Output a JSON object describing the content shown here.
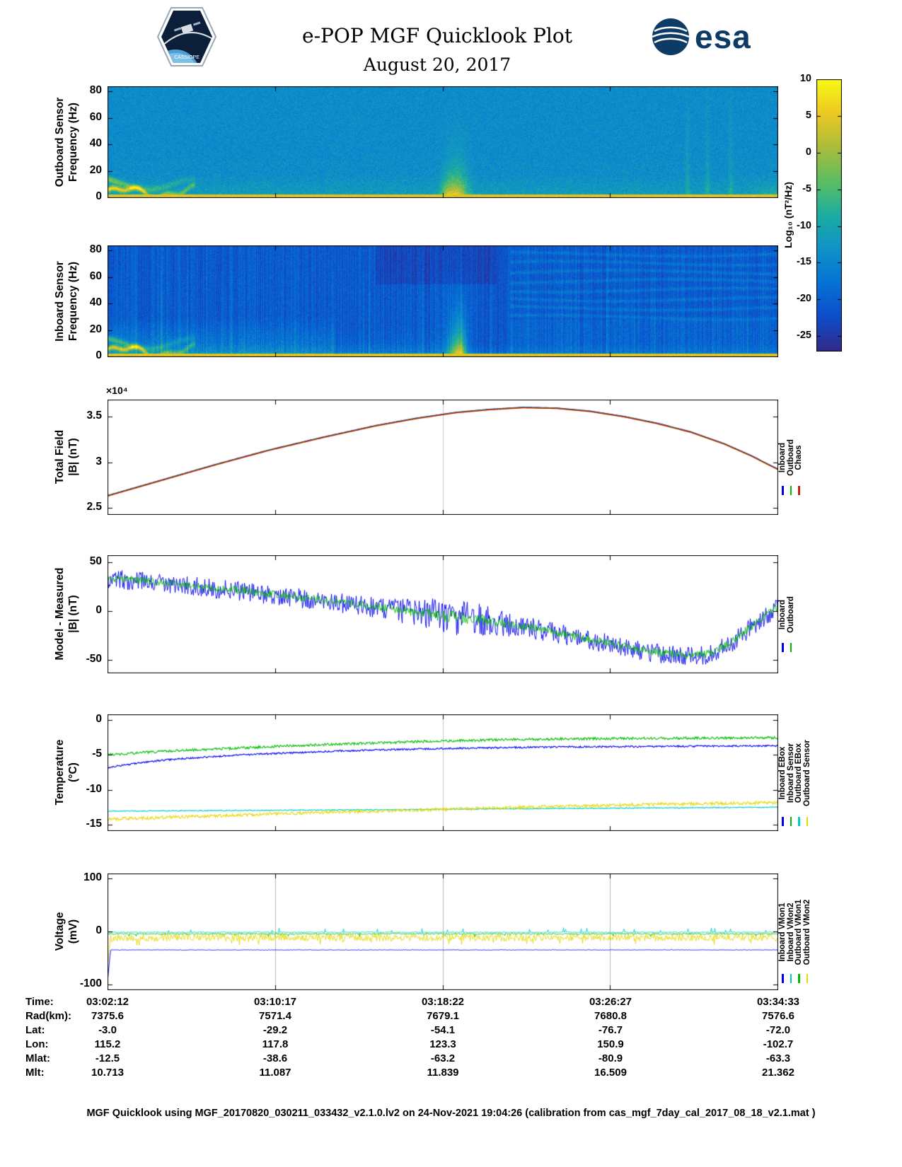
{
  "header": {
    "title": "e-POP MGF Quicklook Plot",
    "date": "August 20, 2017",
    "esa_text": "esa",
    "mission_text": "CASSIOPE"
  },
  "colorbar": {
    "label": "Log₁₀ (nT²/Hz)",
    "ticks": [
      10,
      5,
      0,
      -5,
      -10,
      -15,
      -20,
      -25
    ],
    "range": [
      -27,
      10
    ]
  },
  "chart_data": [
    {
      "type": "heatmap",
      "name": "outboard-spectrogram",
      "ylabel_lines": [
        "Outboard Sensor",
        "Frequency (Hz)"
      ],
      "ylim": [
        0,
        84
      ],
      "yticks": [
        0,
        20,
        40,
        60,
        80
      ],
      "x_tick_times": [
        "03:02:12",
        "03:10:17",
        "03:18:22",
        "03:26:27",
        "03:34:33"
      ],
      "colorbar_units": "Log₁₀ (nT²/Hz)",
      "background_db": -14,
      "features": {
        "bottom_band_db": 4.5,
        "burst_t": 0.52,
        "burst_peak_db": 6,
        "wavy_low_freq_lines_until_t": 0.13,
        "streak_ts": [
          0.865,
          0.895,
          0.93
        ]
      }
    },
    {
      "type": "heatmap",
      "name": "inboard-spectrogram",
      "ylabel_lines": [
        "Inboard Sensor",
        "Frequency (Hz)"
      ],
      "ylim": [
        0,
        84
      ],
      "yticks": [
        0,
        20,
        40,
        60,
        80
      ],
      "x_tick_times": [
        "03:02:12",
        "03:10:17",
        "03:18:22",
        "03:26:27",
        "03:34:33"
      ],
      "background_db": -20.5,
      "features": {
        "bottom_band_db": 4.5,
        "burst_t": 0.52,
        "green_patch_t_max": 0.34,
        "green_patch_f_max": 30,
        "harmonic_lines_t_min": 0.6,
        "harmonic_f_start": 30,
        "harmonic_f_step": 6.8
      }
    },
    {
      "type": "line",
      "name": "total-field",
      "ylabel_lines": [
        "Total Field",
        "|B| (nT)"
      ],
      "y_exponent_label": "×10⁴",
      "units_scale": "1e4 nT",
      "ylim": [
        2.43,
        3.69
      ],
      "yticks": [
        2.5,
        3,
        3.5
      ],
      "grid_t": [
        0.5
      ],
      "x_tick_times": [
        "03:02:12",
        "03:10:17",
        "03:18:22",
        "03:26:27",
        "03:34:33"
      ],
      "legend": [
        {
          "label": "Inboard",
          "color": "#0000ee"
        },
        {
          "label": "Outboard",
          "color": "#00bb00"
        },
        {
          "label": "Chaos",
          "color": "#cc2200"
        }
      ],
      "draw_offsets": [
        0.006,
        0.003,
        0
      ],
      "points": [
        [
          0,
          2.63
        ],
        [
          0.08,
          2.8
        ],
        [
          0.16,
          2.97
        ],
        [
          0.24,
          3.13
        ],
        [
          0.32,
          3.27
        ],
        [
          0.4,
          3.4
        ],
        [
          0.46,
          3.48
        ],
        [
          0.52,
          3.545
        ],
        [
          0.57,
          3.578
        ],
        [
          0.62,
          3.6
        ],
        [
          0.67,
          3.592
        ],
        [
          0.72,
          3.558
        ],
        [
          0.77,
          3.5
        ],
        [
          0.82,
          3.425
        ],
        [
          0.87,
          3.33
        ],
        [
          0.92,
          3.2
        ],
        [
          0.96,
          3.07
        ],
        [
          1,
          2.92
        ]
      ]
    },
    {
      "type": "line",
      "name": "model-minus-measured",
      "ylabel_lines": [
        "Model - Measured",
        "|B| (nT)"
      ],
      "ylim": [
        -63,
        57
      ],
      "yticks": [
        -50,
        0,
        50
      ],
      "grid_t": [
        0.5
      ],
      "x_tick_times": [
        "03:02:12",
        "03:10:17",
        "03:18:22",
        "03:26:27",
        "03:34:33"
      ],
      "legend": [
        {
          "label": "Inboard",
          "color": "#0000ee"
        },
        {
          "label": "Outboard",
          "color": "#00bb00"
        }
      ],
      "mean": [
        [
          0,
          33
        ],
        [
          0.05,
          30
        ],
        [
          0.1,
          27
        ],
        [
          0.15,
          23.5
        ],
        [
          0.2,
          20
        ],
        [
          0.25,
          16
        ],
        [
          0.3,
          12
        ],
        [
          0.35,
          8
        ],
        [
          0.4,
          3.5
        ],
        [
          0.45,
          -1
        ],
        [
          0.48,
          -4
        ],
        [
          0.5,
          -6
        ],
        [
          0.53,
          -8
        ],
        [
          0.56,
          -10
        ],
        [
          0.6,
          -14
        ],
        [
          0.65,
          -20
        ],
        [
          0.7,
          -27
        ],
        [
          0.75,
          -34
        ],
        [
          0.8,
          -41
        ],
        [
          0.84,
          -45
        ],
        [
          0.87,
          -47
        ],
        [
          0.9,
          -44
        ],
        [
          0.93,
          -33
        ],
        [
          0.96,
          -17
        ],
        [
          1,
          4
        ]
      ],
      "series": [
        {
          "name": "Inboard",
          "color": "#0000ee",
          "offset": 0,
          "noise_base": 10,
          "noise_bump": 9
        },
        {
          "name": "Outboard",
          "color": "#00bb00",
          "offset": 1,
          "noise_base": 4,
          "noise_bump": 2
        }
      ]
    },
    {
      "type": "line",
      "name": "temperature",
      "ylabel_lines": [
        "Temperature",
        "(°C)"
      ],
      "ylim": [
        -15.8,
        0.8
      ],
      "yticks": [
        -15,
        -10,
        -5,
        0
      ],
      "grid_t": [
        0.5
      ],
      "x_tick_times": [
        "03:02:12",
        "03:10:17",
        "03:18:22",
        "03:26:27",
        "03:34:33"
      ],
      "legend": [
        {
          "label": "Inboard EBox",
          "color": "#0000ee"
        },
        {
          "label": "Inboard Sensor",
          "color": "#00bb00"
        },
        {
          "label": "Outboard EBox",
          "color": "#00cccc"
        },
        {
          "label": "Outboard Sensor",
          "color": "#e6d800"
        }
      ],
      "series": [
        {
          "name": "Inboard EBox",
          "color": "#0000ee",
          "noise": 0.12,
          "points": [
            [
              0,
              -6.8
            ],
            [
              0.05,
              -6.1
            ],
            [
              0.1,
              -5.6
            ],
            [
              0.2,
              -5.0
            ],
            [
              0.3,
              -4.6
            ],
            [
              0.4,
              -4.3
            ],
            [
              0.5,
              -4.1
            ],
            [
              0.6,
              -3.95
            ],
            [
              0.7,
              -3.85
            ],
            [
              0.8,
              -3.8
            ],
            [
              0.9,
              -3.75
            ],
            [
              1,
              -3.7
            ]
          ]
        },
        {
          "name": "Inboard Sensor",
          "color": "#00bb00",
          "noise": 0.18,
          "points": [
            [
              0,
              -5.0
            ],
            [
              0.05,
              -4.7
            ],
            [
              0.1,
              -4.4
            ],
            [
              0.2,
              -4.0
            ],
            [
              0.3,
              -3.6
            ],
            [
              0.4,
              -3.3
            ],
            [
              0.5,
              -3.0
            ],
            [
              0.6,
              -2.8
            ],
            [
              0.7,
              -2.7
            ],
            [
              0.8,
              -2.62
            ],
            [
              0.9,
              -2.58
            ],
            [
              1,
              -2.55
            ]
          ]
        },
        {
          "name": "Outboard EBox",
          "color": "#00cccc",
          "noise": 0.07,
          "points": [
            [
              0,
              -13.05
            ],
            [
              0.2,
              -12.95
            ],
            [
              0.4,
              -12.85
            ],
            [
              0.6,
              -12.72
            ],
            [
              0.8,
              -12.6
            ],
            [
              1,
              -12.5
            ]
          ]
        },
        {
          "name": "Outboard Sensor",
          "color": "#e6d800",
          "noise": 0.22,
          "points": [
            [
              0,
              -14.2
            ],
            [
              0.1,
              -13.9
            ],
            [
              0.2,
              -13.6
            ],
            [
              0.3,
              -13.3
            ],
            [
              0.4,
              -13.05
            ],
            [
              0.5,
              -12.8
            ],
            [
              0.6,
              -12.55
            ],
            [
              0.7,
              -12.3
            ],
            [
              0.8,
              -12.1
            ],
            [
              0.9,
              -11.95
            ],
            [
              1,
              -11.85
            ]
          ]
        }
      ]
    },
    {
      "type": "line",
      "name": "voltage",
      "ylabel_lines": [
        "Voltage",
        "(mV)"
      ],
      "ylim": [
        -110,
        110
      ],
      "yticks": [
        -100,
        0,
        100
      ],
      "grid_t": [
        0.25,
        0.5,
        0.75
      ],
      "grid_color": "#b9b9b9",
      "x_tick_times": [
        "03:02:12",
        "03:10:17",
        "03:18:22",
        "03:26:27",
        "03:34:33"
      ],
      "legend": [
        {
          "label": "Inboard VMon1",
          "color": "#0000ee"
        },
        {
          "label": "Inboard VMon2",
          "color": "#00cccc"
        },
        {
          "label": "Outboard VMon1",
          "color": "#00bb00"
        },
        {
          "label": "Outboard VMon2",
          "color": "#e6d800"
        }
      ],
      "series": [
        {
          "name": "Inboard VMon1",
          "color": "#0000ee",
          "base": -35,
          "noise": 0.6,
          "spike": -9,
          "spike_prob": 0.012,
          "spike_t": [
            0.4,
            0.64
          ],
          "initial": -88,
          "z": 4
        },
        {
          "name": "Inboard VMon2",
          "color": "#00cccc",
          "base": -1.5,
          "noise": 1.1,
          "spike": 8,
          "spike_prob": 0.02,
          "spike_t": [
            0,
            1
          ],
          "z": 3
        },
        {
          "name": "Outboard VMon1",
          "color": "#00bb00",
          "base": -4.5,
          "noise": 1.4,
          "spike": -5,
          "spike_prob": 0.02,
          "spike_t": [
            0,
            1
          ],
          "z": 2
        },
        {
          "name": "Outboard VMon2",
          "color": "#e6d800",
          "base": -11.5,
          "noise": 7,
          "spike": -9,
          "spike_prob": 0.05,
          "spike_t": [
            0,
            1
          ],
          "initial": -60,
          "ymax": -2,
          "z": 1
        }
      ]
    }
  ],
  "table": {
    "rows": [
      {
        "label": "Time:",
        "values": [
          "03:02:12",
          "03:10:17",
          "03:18:22",
          "03:26:27",
          "03:34:33"
        ]
      },
      {
        "label": "Rad(km):",
        "values": [
          "7375.6",
          "7571.4",
          "7679.1",
          "7680.8",
          "7576.6"
        ]
      },
      {
        "label": "Lat:",
        "values": [
          "-3.0",
          "-29.2",
          "-54.1",
          "-76.7",
          "-72.0"
        ]
      },
      {
        "label": "Lon:",
        "values": [
          "115.2",
          "117.8",
          "123.3",
          "150.9",
          "-102.7"
        ]
      },
      {
        "label": "Mlat:",
        "values": [
          "-12.5",
          "-38.6",
          "-63.2",
          "-80.9",
          "-63.3"
        ]
      },
      {
        "label": "Mlt:",
        "values": [
          "10.713",
          "11.087",
          "11.839",
          "16.509",
          "21.362"
        ]
      }
    ]
  },
  "footer": "MGF Quicklook using MGF_20170820_030211_033432_v2.1.0.lv2 on 24-Nov-2021 19:04:26 (calibration from cas_mgf_7day_cal_2017_08_18_v2.1.mat )"
}
